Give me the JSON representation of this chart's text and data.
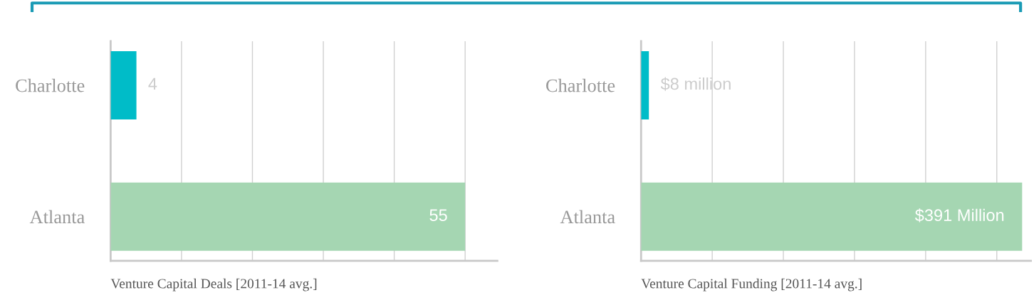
{
  "chart_data": [
    {
      "type": "bar",
      "orientation": "horizontal",
      "xlabel": "Venture Capital Deals [2011-14 avg.]",
      "categories": [
        "Charlotte",
        "Atlanta"
      ],
      "values": [
        4,
        55
      ],
      "colors": [
        "#00bcc8",
        "#a5d6b2"
      ],
      "value_labels": [
        "4",
        "55"
      ],
      "xlim": [
        0,
        60
      ],
      "xticks": [
        {
          "value": 11,
          "label": null
        },
        {
          "value": 22,
          "label": null
        },
        {
          "value": 33,
          "label": null
        },
        {
          "value": 44,
          "label": null
        },
        {
          "value": 55,
          "label": null
        }
      ],
      "grid": "x",
      "tick_labels": "y",
      "legend": false
    },
    {
      "type": "bar",
      "orientation": "horizontal",
      "xlabel": "Venture Capital Funding [2011-14 avg.]",
      "categories": [
        "Charlotte",
        "Atlanta"
      ],
      "values": [
        8,
        391
      ],
      "colors": [
        "#00bcc8",
        "#a5d6b2"
      ],
      "value_labels": [
        "$8 million",
        "$391 Million"
      ],
      "xlim": [
        0,
        400
      ],
      "xticks": [
        {
          "value": 73,
          "label": null
        },
        {
          "value": 146,
          "label": null
        },
        {
          "value": 219,
          "label": null
        },
        {
          "value": 292,
          "label": null
        },
        {
          "value": 365,
          "label": null
        }
      ],
      "grid": "x",
      "tick_labels": "y",
      "legend": false
    }
  ]
}
